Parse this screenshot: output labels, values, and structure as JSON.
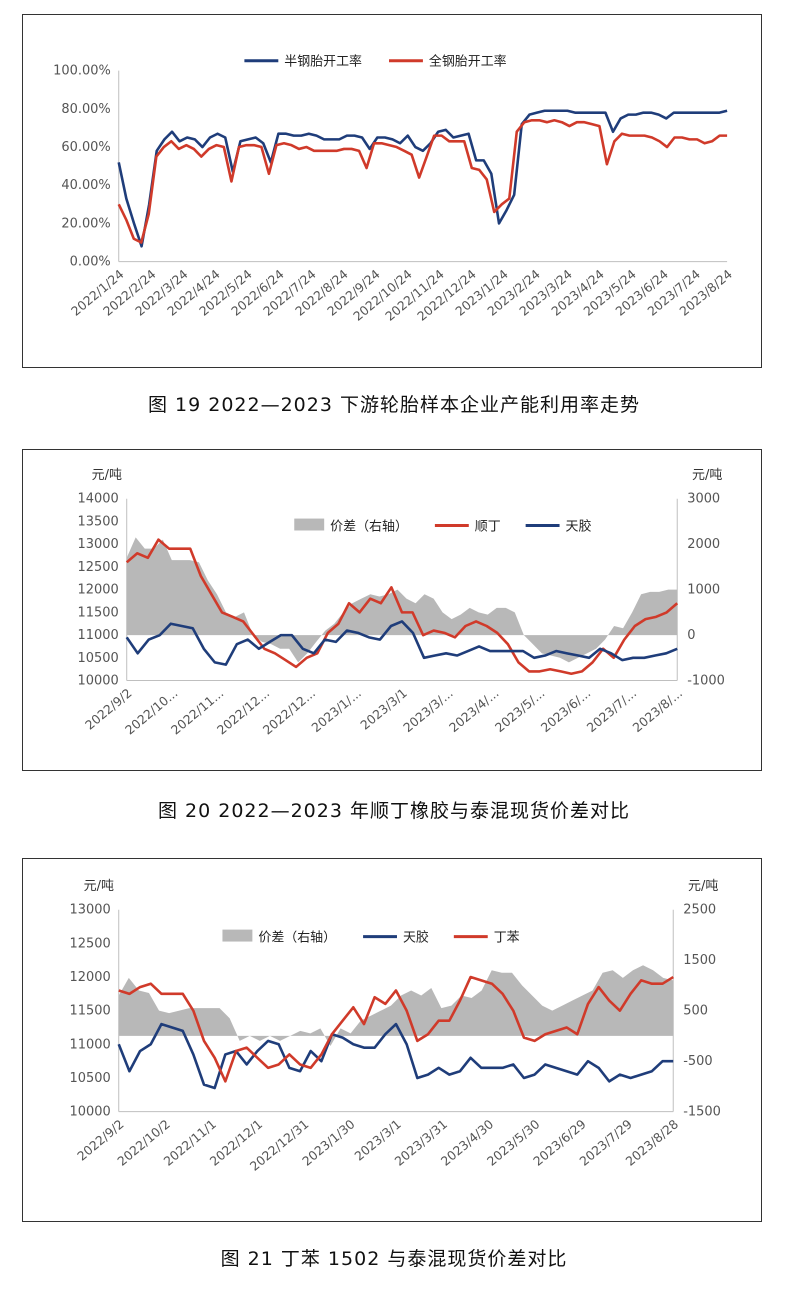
{
  "figures": [
    {
      "caption": "图 19  2022—2023 下游轮胎样本企业产能利用率走势",
      "chart_data": {
        "type": "line",
        "y_ticks": [
          "0.00%",
          "20.00%",
          "40.00%",
          "60.00%",
          "80.00%",
          "100.00%"
        ],
        "ylim": [
          0,
          100
        ],
        "x_ticks": [
          "2022/1/24",
          "2022/2/24",
          "2022/3/24",
          "2022/4/24",
          "2022/5/24",
          "2022/6/24",
          "2022/7/24",
          "2022/8/24",
          "2022/9/24",
          "2022/10/24",
          "2022/11/24",
          "2022/12/24",
          "2023/1/24",
          "2023/2/24",
          "2023/3/24",
          "2023/4/24",
          "2023/5/24",
          "2023/6/24",
          "2023/7/24",
          "2023/8/24"
        ],
        "legend_position": "top",
        "series": [
          {
            "name": "半钢胎开工率",
            "color": "#1f3d7a",
            "values": [
              52,
              33,
              20,
              8,
              30,
              58,
              64,
              68,
              63,
              65,
              64,
              60,
              65,
              67,
              65,
              47,
              63,
              64,
              65,
              62,
              52,
              67,
              67,
              66,
              66,
              67,
              66,
              64,
              64,
              64,
              66,
              66,
              65,
              59,
              65,
              65,
              64,
              62,
              66,
              60,
              58,
              62,
              68,
              69,
              65,
              66,
              67,
              53,
              53,
              46,
              20,
              27,
              35,
              72,
              77,
              78,
              79,
              79,
              79,
              79,
              78,
              78,
              78,
              78,
              78,
              68,
              75,
              77,
              77,
              78,
              78,
              77,
              75,
              78,
              78,
              78,
              78,
              78,
              78,
              78,
              79
            ]
          },
          {
            "name": "全钢胎开工率",
            "color": "#d03a2a",
            "values": [
              30,
              22,
              12,
              10,
              25,
              55,
              60,
              63,
              59,
              61,
              59,
              55,
              59,
              61,
              60,
              42,
              60,
              61,
              61,
              60,
              46,
              61,
              62,
              61,
              59,
              60,
              58,
              58,
              58,
              58,
              59,
              59,
              58,
              49,
              62,
              62,
              61,
              60,
              58,
              56,
              44,
              55,
              66,
              66,
              63,
              63,
              63,
              49,
              48,
              43,
              26,
              30,
              33,
              68,
              73,
              74,
              74,
              73,
              74,
              73,
              71,
              73,
              73,
              72,
              71,
              51,
              63,
              67,
              66,
              66,
              66,
              65,
              63,
              60,
              65,
              65,
              64,
              64,
              62,
              63,
              66,
              66
            ]
          }
        ]
      }
    },
    {
      "caption": "图 20  2022—2023 年顺丁橡胶与泰混现货价差对比",
      "chart_data": {
        "type": "line",
        "left_unit": "元/吨",
        "right_unit": "元/吨",
        "y_ticks": [
          "10000",
          "10500",
          "11000",
          "11500",
          "12000",
          "12500",
          "13000",
          "13500",
          "14000"
        ],
        "ylim": [
          10000,
          14000
        ],
        "y2_ticks": [
          "-1000",
          "0",
          "1000",
          "2000",
          "3000"
        ],
        "y2lim": [
          -1000,
          3000
        ],
        "x_ticks": [
          "2022/9/2",
          "2022/10...",
          "2022/11...",
          "2022/12...",
          "2022/12...",
          "2023/1/...",
          "2023/3/1",
          "2023/3/...",
          "2023/4/...",
          "2023/5/...",
          "2023/6/...",
          "2023/7/...",
          "2023/8/..."
        ],
        "legend_position": "top",
        "series": [
          {
            "name": "价差（右轴）",
            "type": "area",
            "axis": "right",
            "color": "#b8b8b8",
            "values": [
              1700,
              2150,
              1900,
              1900,
              2100,
              1650,
              1650,
              1650,
              1600,
              1200,
              900,
              500,
              400,
              500,
              0,
              -150,
              -200,
              -300,
              -300,
              -600,
              -400,
              -150,
              100,
              250,
              500,
              700,
              800,
              900,
              850,
              900,
              1000,
              800,
              700,
              900,
              800,
              500,
              350,
              450,
              600,
              500,
              450,
              600,
              600,
              500,
              0,
              -200,
              -400,
              -450,
              -500,
              -600,
              -500,
              -400,
              -300,
              -100,
              200,
              150,
              500,
              900,
              950,
              950,
              1000,
              1000
            ]
          },
          {
            "name": "顺丁",
            "color": "#d03a2a",
            "values": [
              12600,
              12800,
              12700,
              13100,
              12900,
              12900,
              12900,
              12300,
              11900,
              11500,
              11400,
              11300,
              11000,
              10700,
              10600,
              10450,
              10300,
              10500,
              10600,
              11050,
              11250,
              11700,
              11500,
              11800,
              11700,
              12050,
              11500,
              11500,
              11000,
              11100,
              11050,
              10950,
              11200,
              11300,
              11200,
              11050,
              10800,
              10400,
              10200,
              10200,
              10250,
              10200,
              10150,
              10200,
              10400,
              10700,
              10500,
              10900,
              11200,
              11350,
              11400,
              11500,
              11700
            ]
          },
          {
            "name": "天胶",
            "color": "#1f3d7a",
            "values": [
              10950,
              10600,
              10900,
              11000,
              11250,
              11200,
              11150,
              10700,
              10400,
              10350,
              10800,
              10900,
              10700,
              10850,
              11000,
              11000,
              10700,
              10600,
              10900,
              10850,
              11100,
              11050,
              10950,
              10900,
              11200,
              11300,
              11050,
              10500,
              10550,
              10600,
              10550,
              10650,
              10750,
              10650,
              10650,
              10650,
              10650,
              10500,
              10550,
              10650,
              10600,
              10550,
              10500,
              10700,
              10600,
              10450,
              10500,
              10500,
              10550,
              10600,
              10700
            ]
          }
        ]
      }
    },
    {
      "caption": "图 21   丁苯 1502 与泰混现货价差对比",
      "chart_data": {
        "type": "line",
        "left_unit": "元/吨",
        "right_unit": "元/吨",
        "y_ticks": [
          "10000",
          "10500",
          "11000",
          "11500",
          "12000",
          "12500",
          "13000"
        ],
        "ylim": [
          10000,
          13000
        ],
        "y2_ticks": [
          "-1500",
          "-500",
          "500",
          "1500",
          "2500"
        ],
        "y2lim": [
          -1500,
          2500
        ],
        "x_ticks": [
          "2022/9/2",
          "2022/10/2",
          "2022/11/1",
          "2022/12/1",
          "2022/12/31",
          "2023/1/30",
          "2023/3/1",
          "2023/3/31",
          "2023/4/30",
          "2023/5/30",
          "2023/6/29",
          "2023/7/29",
          "2023/8/28"
        ],
        "legend_position": "top",
        "series": [
          {
            "name": "价差（右轴）",
            "type": "area",
            "axis": "right",
            "color": "#b8b8b8",
            "values": [
              800,
              1150,
              900,
              850,
              500,
              450,
              500,
              550,
              550,
              550,
              550,
              350,
              -100,
              0,
              -100,
              0,
              -100,
              0,
              100,
              50,
              150,
              -200,
              150,
              50,
              300,
              400,
              500,
              600,
              800,
              900,
              800,
              950,
              550,
              600,
              800,
              750,
              900,
              1300,
              1250,
              1250,
              1000,
              800,
              600,
              500,
              600,
              700,
              800,
              900,
              1250,
              1300,
              1150,
              1300,
              1400,
              1300,
              1150,
              1100
            ]
          },
          {
            "name": "天胶",
            "color": "#1f3d7a",
            "values": [
              11000,
              10600,
              10900,
              11000,
              11300,
              11250,
              11200,
              10850,
              10400,
              10350,
              10850,
              10900,
              10700,
              10900,
              11050,
              11000,
              10650,
              10600,
              10900,
              10750,
              11150,
              11100,
              11000,
              10950,
              10950,
              11150,
              11300,
              11000,
              10500,
              10550,
              10650,
              10550,
              10600,
              10800,
              10650,
              10650,
              10650,
              10700,
              10500,
              10550,
              10700,
              10650,
              10600,
              10550,
              10750,
              10650,
              10450,
              10550,
              10500,
              10550,
              10600,
              10750,
              10750
            ]
          },
          {
            "name": "丁苯",
            "color": "#d03a2a",
            "values": [
              11800,
              11750,
              11850,
              11900,
              11750,
              11750,
              11750,
              11500,
              11050,
              10800,
              10450,
              10900,
              10950,
              10800,
              10650,
              10700,
              10850,
              10700,
              10650,
              10850,
              11150,
              11350,
              11550,
              11300,
              11700,
              11600,
              11800,
              11500,
              11050,
              11150,
              11350,
              11350,
              11650,
              12000,
              11950,
              11900,
              11750,
              11500,
              11100,
              11050,
              11150,
              11200,
              11250,
              11150,
              11600,
              11850,
              11650,
              11500,
              11750,
              11950,
              11900,
              11900,
              12000
            ]
          }
        ]
      }
    }
  ]
}
